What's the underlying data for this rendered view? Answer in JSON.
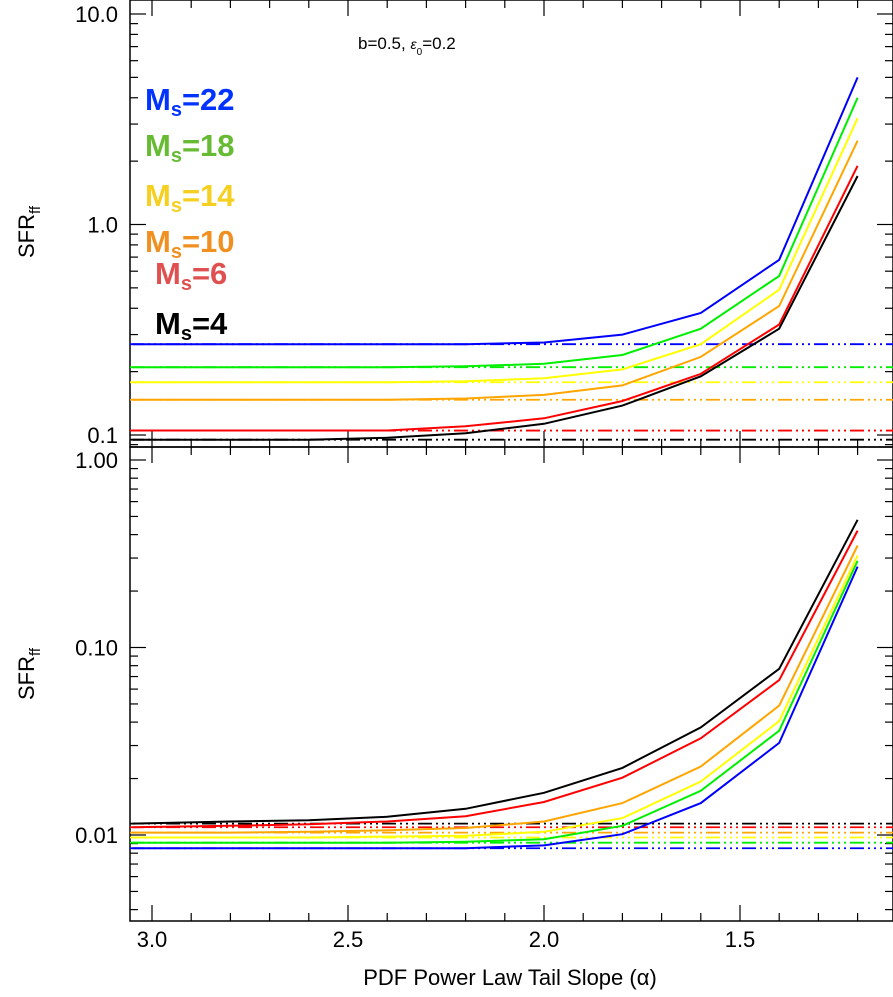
{
  "chart_data": [
    {
      "type": "line",
      "panel": "top",
      "ylabel": "SFR",
      "ylabel_sub": "ff",
      "xlabel": "",
      "yscale": "log",
      "ylim": [
        0.09,
        10.0
      ],
      "xlim": [
        3.05,
        1.2
      ],
      "yticks": [
        0.1,
        1.0,
        10.0
      ],
      "ytick_labels": [
        "0.1",
        "1.0",
        "10.0"
      ],
      "annotation": {
        "b": "b=0.5,",
        "eps_symbol": "ε",
        "eps_sub": "0",
        "eps_val": "=0.2"
      },
      "legend": [
        {
          "prefix": "M",
          "sub": "s",
          "value": "=22",
          "color": "#0033ff"
        },
        {
          "prefix": "M",
          "sub": "s",
          "value": "=18",
          "color": "#66bb33"
        },
        {
          "prefix": "M",
          "sub": "s",
          "value": "=14",
          "color": "#f5d020"
        },
        {
          "prefix": "M",
          "sub": "s",
          "value": "=10",
          "color": "#f09020"
        },
        {
          "prefix": "M",
          "sub": "s",
          "value": "=6",
          "color": "#e05050"
        },
        {
          "prefix": "M",
          "sub": "s",
          "value": "=4",
          "color": "#000000"
        }
      ],
      "x": [
        3.05,
        2.8,
        2.6,
        2.4,
        2.2,
        2.0,
        1.8,
        1.6,
        1.4,
        1.2
      ],
      "series": [
        {
          "color": "#0000ff",
          "values": [
            0.27,
            0.27,
            0.27,
            0.27,
            0.27,
            0.275,
            0.3,
            0.38,
            0.68,
            5.0
          ],
          "asymptote": 0.27
        },
        {
          "color": "#00ee00",
          "values": [
            0.21,
            0.21,
            0.21,
            0.21,
            0.212,
            0.218,
            0.24,
            0.32,
            0.57,
            4.0
          ],
          "asymptote": 0.21
        },
        {
          "color": "#ffff00",
          "values": [
            0.178,
            0.178,
            0.178,
            0.178,
            0.18,
            0.186,
            0.205,
            0.27,
            0.49,
            3.2
          ],
          "asymptote": 0.178
        },
        {
          "color": "#ffa500",
          "values": [
            0.147,
            0.147,
            0.147,
            0.147,
            0.149,
            0.155,
            0.172,
            0.235,
            0.41,
            2.5
          ],
          "asymptote": 0.147
        },
        {
          "color": "#ff0000",
          "values": [
            0.105,
            0.105,
            0.105,
            0.105,
            0.11,
            0.12,
            0.145,
            0.195,
            0.335,
            1.9
          ],
          "asymptote": 0.105
        },
        {
          "color": "#000000",
          "values": [
            0.095,
            0.095,
            0.095,
            0.097,
            0.102,
            0.113,
            0.138,
            0.19,
            0.32,
            1.7
          ],
          "asymptote": 0.095
        }
      ]
    },
    {
      "type": "line",
      "panel": "bottom",
      "ylabel": "SFR",
      "ylabel_sub": "ff",
      "xlabel": "PDF Power Law Tail Slope (α)",
      "yscale": "log",
      "ylim": [
        0.0055,
        1.0
      ],
      "xlim": [
        3.05,
        1.2
      ],
      "yticks": [
        0.01,
        0.1,
        1.0
      ],
      "ytick_labels": [
        "0.01",
        "0.10",
        "1.00"
      ],
      "xticks": [
        3.0,
        2.5,
        2.0,
        1.5
      ],
      "xtick_labels": [
        "3.0",
        "2.5",
        "2.0",
        "1.5"
      ],
      "x": [
        3.05,
        2.8,
        2.6,
        2.4,
        2.2,
        2.0,
        1.8,
        1.6,
        1.4,
        1.2
      ],
      "series": [
        {
          "color": "#000000",
          "values": [
            0.0115,
            0.0118,
            0.012,
            0.0125,
            0.0138,
            0.0168,
            0.0228,
            0.0375,
            0.077,
            0.48
          ],
          "asymptote": 0.0115
        },
        {
          "color": "#ff0000",
          "values": [
            0.011,
            0.0112,
            0.0114,
            0.0118,
            0.0126,
            0.015,
            0.0202,
            0.0328,
            0.067,
            0.42
          ],
          "asymptote": 0.011
        },
        {
          "color": "#ffa500",
          "values": [
            0.0103,
            0.0103,
            0.0104,
            0.0106,
            0.0109,
            0.0118,
            0.0148,
            0.0232,
            0.049,
            0.35
          ],
          "asymptote": 0.0103
        },
        {
          "color": "#ffff00",
          "values": [
            0.0097,
            0.0097,
            0.0097,
            0.0098,
            0.0099,
            0.0104,
            0.0123,
            0.0193,
            0.0405,
            0.31
          ],
          "asymptote": 0.0097
        },
        {
          "color": "#00ee00",
          "values": [
            0.0091,
            0.0091,
            0.0091,
            0.0091,
            0.0092,
            0.0095,
            0.0112,
            0.0172,
            0.036,
            0.29
          ],
          "asymptote": 0.0091
        },
        {
          "color": "#0000ff",
          "values": [
            0.0085,
            0.0085,
            0.0085,
            0.0085,
            0.0085,
            0.0088,
            0.0101,
            0.0148,
            0.031,
            0.27
          ],
          "asymptote": 0.0085
        }
      ]
    }
  ]
}
